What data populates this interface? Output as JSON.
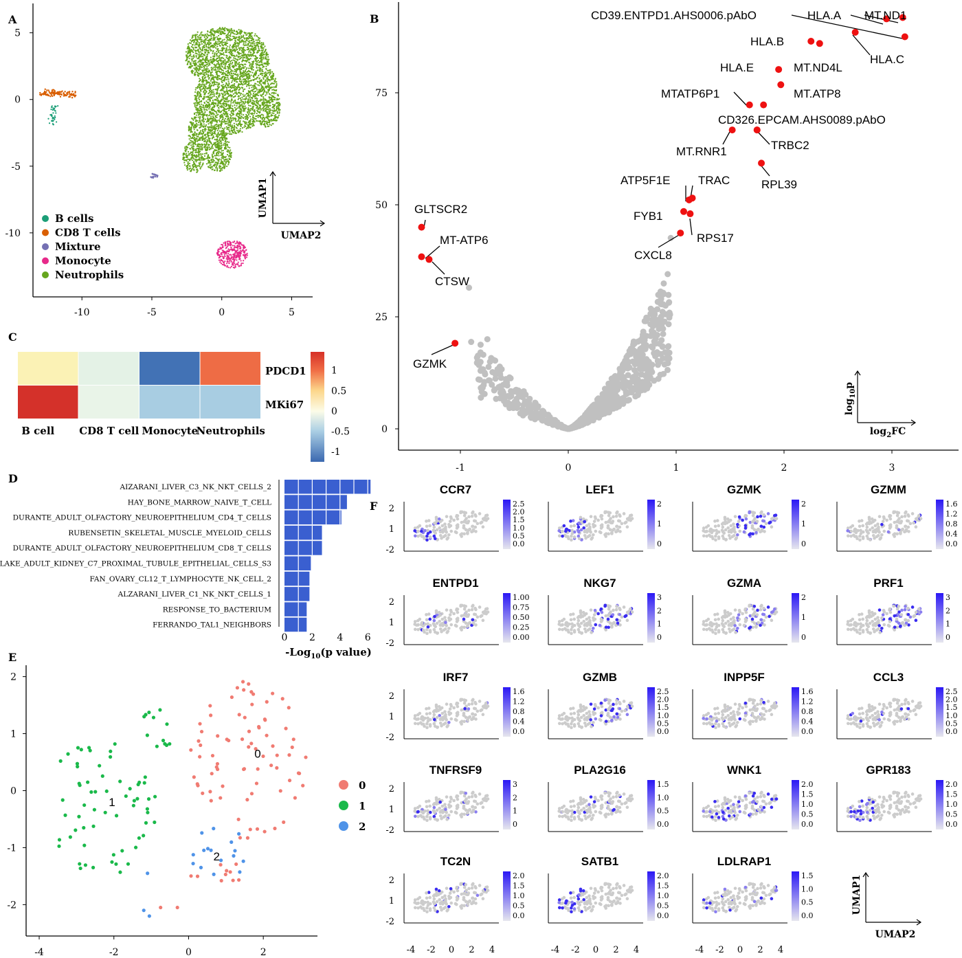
{
  "colors": {
    "b_cells": "#1b9e77",
    "cd8": "#d95f02",
    "mixture": "#7570b3",
    "monocyte": "#e7298a",
    "neutrophils": "#66a61e",
    "sig": "#ee1111",
    "nonsig": "#c0c0c0",
    "bar": "#3a5fd0",
    "c0": "#f07b72",
    "c1": "#1ab94a",
    "c2": "#4f93e8",
    "feat_hi": "#3a2cf0",
    "feat_lo": "#cccccc"
  },
  "panels": {
    "A": "A",
    "B": "B",
    "C": "C",
    "D": "D",
    "E": "E",
    "F": "F"
  },
  "chart_data": [
    {
      "id": "A",
      "type": "scatter",
      "title": "",
      "xlabel": "",
      "ylabel": "",
      "xlim": [
        -13.5,
        6.5
      ],
      "ylim": [
        -14.8,
        7.2
      ],
      "xticks": [
        "-10",
        "-5",
        "0",
        "5"
      ],
      "xtick_values": [
        -10,
        -5,
        0,
        5
      ],
      "yticks": [
        "5",
        "0",
        "-5",
        "-10"
      ],
      "ytick_values": [
        5,
        0,
        -5,
        -10
      ],
      "arrow_y_label": "UMAP1",
      "arrow_x_label": "UMAP2",
      "legend_position": "bottom-left",
      "series": [
        {
          "name": "B cells",
          "color_key": "b_cells",
          "cluster_center": [
            -12,
            -1.4
          ]
        },
        {
          "name": "CD8 T cells",
          "color_key": "cd8",
          "cluster_center": [
            -12,
            0.4
          ]
        },
        {
          "name": "Mixture",
          "color_key": "mixture",
          "cluster_center": [
            -4.8,
            -5.7
          ]
        },
        {
          "name": "Monocyte",
          "color_key": "monocyte",
          "cluster_center": [
            0.7,
            -11.6
          ]
        },
        {
          "name": "Neutrophils",
          "color_key": "neutrophils",
          "cluster_center": [
            0.5,
            0.5
          ]
        }
      ]
    },
    {
      "id": "B",
      "type": "scatter",
      "title": "",
      "xlim": [
        -1.6,
        3.4
      ],
      "ylim": [
        -5,
        95
      ],
      "xticks": [
        "-1",
        "0",
        "1",
        "2",
        "3"
      ],
      "xtick_values": [
        -1,
        0,
        1,
        2,
        3
      ],
      "yticks": [
        "0",
        "25",
        "50",
        "75"
      ],
      "ytick_values": [
        0,
        25,
        50,
        75
      ],
      "arrow_y_label": "log",
      "arrow_y_sub": "10",
      "arrow_y_tail": "p",
      "arrow_x_label": "log",
      "arrow_x_sub": "2",
      "arrow_x_tail": "FC",
      "labeled_points": [
        {
          "label": "CD39.ENTPD1.AHS0006.pAbO",
          "x": 3.12,
          "y": 87.5
        },
        {
          "label": "HLA.A",
          "x": 2.95,
          "y": 91.5
        },
        {
          "label": "MT.ND1",
          "x": 3.1,
          "y": 91.8
        },
        {
          "label": "HLA.B",
          "x": 2.25,
          "y": 86.5
        },
        {
          "label": "",
          "x": 2.33,
          "y": 86.0
        },
        {
          "label": "HLA.C",
          "x": 2.66,
          "y": 88.5
        },
        {
          "label": "HLA.E",
          "x": 1.95,
          "y": 80.2
        },
        {
          "label": "MT.ND4L",
          "x": 1.97,
          "y": 76.8
        },
        {
          "label": "MTATP6P1",
          "x": 1.68,
          "y": 72.3
        },
        {
          "label": "MT.ATP8",
          "x": 1.81,
          "y": 72.3
        },
        {
          "label": "CD326.EPCAM.AHS0089.pAbO",
          "x": 1.75,
          "y": 66.7
        },
        {
          "label": "MT.RNR1",
          "x": 1.52,
          "y": 66.7
        },
        {
          "label": "TRBC2",
          "x": 1.75,
          "y": 66.7
        },
        {
          "label": "RPL39",
          "x": 1.79,
          "y": 59.3
        },
        {
          "label": "ATP5F1E",
          "x": 1.12,
          "y": 51.1
        },
        {
          "label": "TRAC",
          "x": 1.15,
          "y": 51.5
        },
        {
          "label": "FYB1",
          "x": 1.07,
          "y": 48.5
        },
        {
          "label": "RPS17",
          "x": 1.13,
          "y": 48.0
        },
        {
          "label": "CXCL8",
          "x": 1.04,
          "y": 43.7
        },
        {
          "label": "GLTSCR2",
          "x": -1.36,
          "y": 45.0
        },
        {
          "label": "MT-ATP6",
          "x": -1.36,
          "y": 38.4
        },
        {
          "label": "CTSW",
          "x": -1.29,
          "y": 37.8
        },
        {
          "label": "GZMK",
          "x": -1.05,
          "y": 19.1
        }
      ]
    },
    {
      "id": "C",
      "type": "heatmap",
      "title": "",
      "columns": [
        "B cell",
        "CD8 T cell",
        "Monocyte",
        "Neutrophils"
      ],
      "rows": [
        "PDCD1",
        "MKi67"
      ],
      "values": [
        [
          0.35,
          -0.05,
          -1.0,
          1.05
        ],
        [
          1.45,
          0.0,
          -0.45,
          -0.45
        ]
      ],
      "colorbar_ticks": [
        "1",
        "0.5",
        "0",
        "-0.5",
        "-1"
      ],
      "colorbar_values": [
        1,
        0.5,
        0,
        -0.5,
        -1
      ],
      "vlim": [
        -1.25,
        1.45
      ]
    },
    {
      "id": "D",
      "type": "bar",
      "orientation": "horizontal",
      "title": "",
      "categories": [
        "AIZARANI_LIVER_C3_NK_NKT_CELLS_2",
        "HAY_BONE_MARROW_NAIVE_T_CELL",
        "DURANTE_ADULT_OLFACTORY_NEUROEPITHELIUM_CD4_T_CELLS",
        "RUBENSETIN_SKELETAL_MUSCLE_MYELOID_CELLS",
        "DURANTE_ADULT_OLFACTORY_NEUROEPITHELIUM_CD8_T_CELLS",
        "LAKE_ADULT_KIDNEY_C7_PROXIMAL_TUBULE_EPITHELIAL_CELLS_S3",
        "FAN_OVARY_CL12_T_LYMPHOCYTE_NK_CELL_2",
        "ALZARANI_LIVER_C1_NK_NKT_CELLS_1",
        "RESPONSE_TO_BACTERIUM",
        "FERRANDO_TAL1_NEIGHBORS"
      ],
      "values": [
        6.2,
        4.5,
        4.1,
        2.7,
        2.7,
        1.9,
        1.8,
        1.8,
        1.6,
        1.6
      ],
      "xlim": [
        0,
        6.5
      ],
      "xticks": [
        "0",
        "2",
        "4",
        "6"
      ],
      "xtick_values": [
        0,
        2,
        4,
        6
      ],
      "xlabel_pre": "-Log",
      "xlabel_sub": "10",
      "xlabel_post": "(p value)"
    },
    {
      "id": "E",
      "type": "scatter",
      "title": "",
      "xlim": [
        -4.35,
        3.45
      ],
      "ylim": [
        -2.55,
        2.2
      ],
      "xticks": [
        "-4",
        "-2",
        "0",
        "2"
      ],
      "xtick_values": [
        -4,
        -2,
        0,
        2
      ],
      "yticks": [
        "2",
        "1",
        "0",
        "-1",
        "-2"
      ],
      "ytick_values": [
        2,
        1,
        0,
        -1,
        -2
      ],
      "legend_position": "right",
      "series": [
        {
          "name": "0",
          "color_key": "c0",
          "center_label": "0",
          "center": [
            1.85,
            0.65
          ]
        },
        {
          "name": "1",
          "color_key": "c1",
          "center_label": "1",
          "center": [
            -2.05,
            -0.2
          ]
        },
        {
          "name": "2",
          "color_key": "c2",
          "center_label": "2",
          "center": [
            0.75,
            -1.15
          ]
        }
      ]
    },
    {
      "id": "F",
      "type": "scatter",
      "title": "",
      "xticks": [
        "-4",
        "-2",
        "0",
        "2",
        "4"
      ],
      "xtick_values": [
        -4,
        -2,
        0,
        2,
        4
      ],
      "yticks": [
        "2",
        "1",
        "-2"
      ],
      "arrow_y_label": "UMAP1",
      "arrow_x_label": "UMAP2",
      "genes": [
        {
          "name": "CCR7",
          "scale": [
            "2.5",
            "2.0",
            "1.5",
            "1.0",
            "0.5",
            "0.0"
          ],
          "region": "left"
        },
        {
          "name": "LEF1",
          "scale": [
            "2",
            "1",
            "0"
          ],
          "region": "left"
        },
        {
          "name": "GZMK",
          "scale": [
            "2",
            "1",
            "0"
          ],
          "region": "right"
        },
        {
          "name": "GZMM",
          "scale": [
            "1.6",
            "1.2",
            "0.8",
            "0.4",
            "0.0"
          ],
          "region": "sparse"
        },
        {
          "name": "ENTPD1",
          "scale": [
            "1.00",
            "0.75",
            "0.50",
            "0.25",
            "0.00"
          ],
          "region": "sparse"
        },
        {
          "name": "NKG7",
          "scale": [
            "3",
            "2",
            "1",
            "0"
          ],
          "region": "right"
        },
        {
          "name": "GZMA",
          "scale": [
            "2",
            "1",
            "0"
          ],
          "region": "right"
        },
        {
          "name": "PRF1",
          "scale": [
            "3",
            "2",
            "1",
            "0"
          ],
          "region": "right"
        },
        {
          "name": "IRF7",
          "scale": [
            "1.6",
            "1.2",
            "0.8",
            "0.4",
            "0.0"
          ],
          "region": "sparse"
        },
        {
          "name": "GZMB",
          "scale": [
            "2.5",
            "2.0",
            "1.5",
            "1.0",
            "0.5",
            "0.0"
          ],
          "region": "right"
        },
        {
          "name": "INPP5F",
          "scale": [
            "1.6",
            "1.2",
            "0.8",
            "0.4",
            "0.0"
          ],
          "region": "sparse"
        },
        {
          "name": "CCL3",
          "scale": [
            "2.5",
            "2.0",
            "1.5",
            "1.0",
            "0.5",
            "0.0"
          ],
          "region": "sparse"
        },
        {
          "name": "TNFRSF9",
          "scale": [
            "3",
            "2",
            "1",
            "0"
          ],
          "region": "sparse"
        },
        {
          "name": "PLA2G16",
          "scale": [
            "1.5",
            "1.0",
            "0.5",
            "0.0"
          ],
          "region": "sparse"
        },
        {
          "name": "WNK1",
          "scale": [
            "2.0",
            "1.5",
            "1.0",
            "0.5",
            "0.0"
          ],
          "region": "all"
        },
        {
          "name": "GPR183",
          "scale": [
            "2.0",
            "1.5",
            "1.0",
            "0.5",
            "0.0"
          ],
          "region": "left"
        },
        {
          "name": "TC2N",
          "scale": [
            "2.0",
            "1.5",
            "1.0",
            "0.5",
            "0.0"
          ],
          "region": "sparse"
        },
        {
          "name": "SATB1",
          "scale": [
            "2.0",
            "1.5",
            "1.0",
            "0.5",
            "0.0"
          ],
          "region": "left"
        },
        {
          "name": "LDLRAP1",
          "scale": [
            "1.5",
            "1.0",
            "0.5",
            "0.0"
          ],
          "region": "sparse"
        }
      ]
    }
  ]
}
